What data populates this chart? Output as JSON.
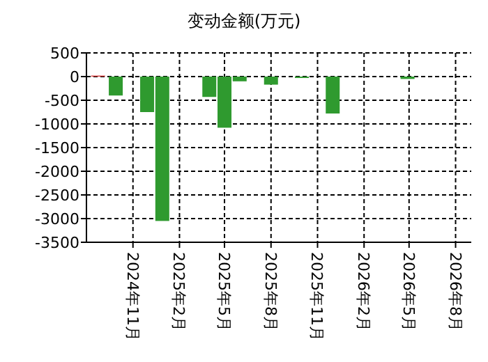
{
  "chart_data": {
    "type": "bar",
    "title": "变动金额(万元)",
    "x": [
      "2024-08-24",
      "2024-09-28",
      "2024-11-29",
      "2024-12-29",
      "2025-04-01",
      "2025-05-01",
      "2025-05-31",
      "2025-08-01",
      "2025-10-01",
      "2025-12-01",
      "2026-04-28"
    ],
    "values": [
      20,
      -400,
      -750,
      -3050,
      -430,
      -1080,
      -100,
      -170,
      -30,
      -780,
      -50
    ],
    "colors": [
      "#d03030",
      "#2f9a2f",
      "#2f9a2f",
      "#2f9a2f",
      "#2f9a2f",
      "#2f9a2f",
      "#2f9a2f",
      "#2f9a2f",
      "#2f9a2f",
      "#2f9a2f",
      "#2f9a2f"
    ],
    "xlim": [
      "2024-08",
      "2026-09"
    ],
    "xticks": [
      {
        "value": "2024-11",
        "label": "2024年11月"
      },
      {
        "value": "2025-02",
        "label": "2025年2月"
      },
      {
        "value": "2025-05",
        "label": "2025年5月"
      },
      {
        "value": "2025-08",
        "label": "2025年8月"
      },
      {
        "value": "2025-11",
        "label": "2025年11月"
      },
      {
        "value": "2026-02",
        "label": "2026年2月"
      },
      {
        "value": "2026-05",
        "label": "2026年5月"
      },
      {
        "value": "2026-08",
        "label": "2026年8月"
      }
    ],
    "ylim": [
      -3500,
      500
    ],
    "yticks": [
      500,
      0,
      -500,
      -1000,
      -1500,
      -2000,
      -2500,
      -3000,
      -3500
    ],
    "grid": true
  }
}
